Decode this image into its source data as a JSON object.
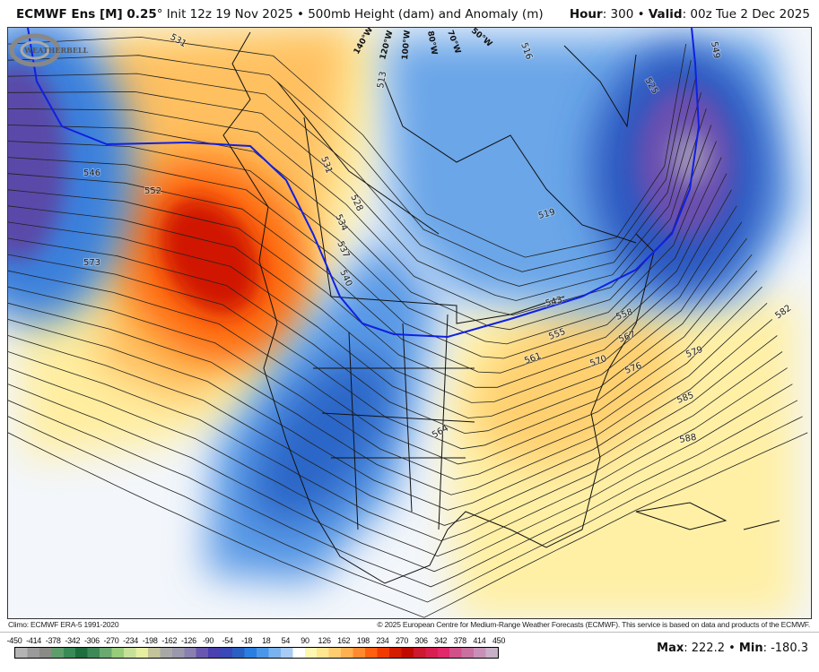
{
  "header": {
    "model": "ECMWF Ens [M] 0.25",
    "degree": "°",
    "init": " Init 12z 19 Nov 2025 • 500mb Height (dam) and Anomaly (m)",
    "hour_label": "Hour",
    "hour_value": ": 300 • ",
    "valid_label": "Valid",
    "valid_value": ": 00z Tue 2 Dec 2025"
  },
  "map": {
    "contour_labels": [
      "531",
      "546",
      "552",
      "573",
      "513",
      "531",
      "528",
      "534",
      "537",
      "540",
      "516",
      "525",
      "549",
      "519",
      "543",
      "558",
      "555",
      "561",
      "570",
      "567",
      "576",
      "579",
      "582",
      "585",
      "588",
      "564"
    ],
    "longitude_labels": [
      "140°W",
      "120°W",
      "100°W",
      "80°W",
      "70°W",
      "50°W"
    ],
    "highlight_contour_color": "#1020e0",
    "logo_text": "WeatherBELL"
  },
  "footer": {
    "climo": "Climo: ECMWF ERA-5 1991-2020",
    "copyright": "© 2025 European Centre for Medium-Range Weather Forecasts (ECMWF). This service is based on data and products of the ECMWF."
  },
  "colorbar": {
    "ticks": [
      "-450",
      "-414",
      "-378",
      "-342",
      "-306",
      "-270",
      "-234",
      "-198",
      "-162",
      "-126",
      "-90",
      "-54",
      "-18",
      "18",
      "54",
      "90",
      "126",
      "162",
      "198",
      "234",
      "270",
      "306",
      "342",
      "378",
      "414",
      "450"
    ],
    "colors": [
      "#b4b4b4",
      "#9a9a9a",
      "#8a8a86",
      "#5e9e6a",
      "#3a8a56",
      "#1e6e3e",
      "#3d8a58",
      "#6aaa70",
      "#96cc7a",
      "#c6e09a",
      "#e6eea0",
      "#c4c49c",
      "#a8a8a8",
      "#9a98aa",
      "#8a80b0",
      "#6a58b0",
      "#4a40b0",
      "#3a48b8",
      "#2a60c0",
      "#2a7ee0",
      "#4a96e8",
      "#7ab2ee",
      "#a8ccf4",
      "#ffffff",
      "#fff6b0",
      "#ffe690",
      "#ffcc70",
      "#ffb050",
      "#ff8a30",
      "#ff6010",
      "#f03a00",
      "#d41c00",
      "#c00a00",
      "#cc1830",
      "#d81e50",
      "#e0286a",
      "#d0508a",
      "#c870a0",
      "#c890b8",
      "#c8b0c8"
    ]
  },
  "stats": {
    "max_label": "Max",
    "max_value": ": 222.2 • ",
    "min_label": "Min",
    "min_value": ": -180.3"
  }
}
